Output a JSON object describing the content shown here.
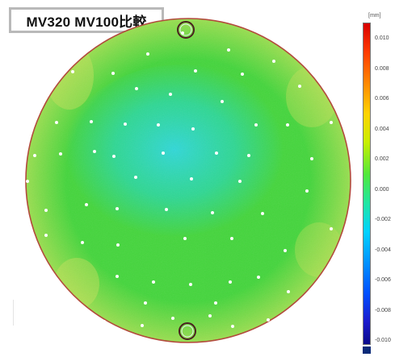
{
  "title": "MV320 MV100比較",
  "colorbar": {
    "unit": "[mm]",
    "ticks": [
      "0.010",
      "0.008",
      "0.006",
      "0.004",
      "0.002",
      "0.000",
      "-0.002",
      "-0.004",
      "-0.006",
      "-0.008",
      "-0.010"
    ]
  },
  "colors": {
    "green": "#43d63b",
    "cyan": "#25d8d0",
    "yellow": "#c8e45a",
    "rim": "#b24a3c",
    "dot": "#ffffff"
  }
}
